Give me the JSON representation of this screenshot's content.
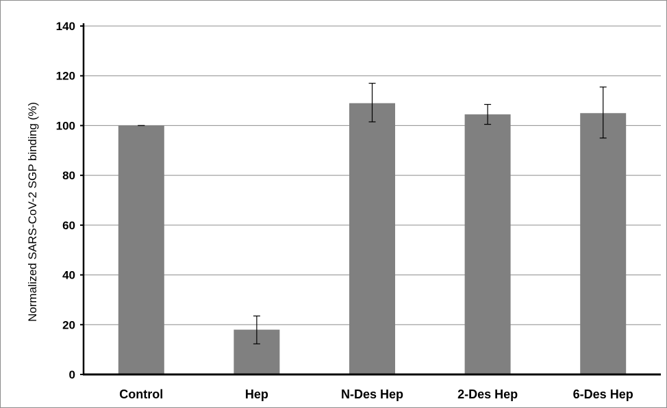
{
  "chart_data": {
    "type": "bar",
    "title": "",
    "xlabel": "",
    "ylabel": "Normalized SARS-CoV-2 SGP binding  (%)",
    "categories": [
      "Control",
      "Hep",
      "N-Des Hep",
      "2-Des Hep",
      "6-Des Hep"
    ],
    "values": [
      100,
      18,
      109,
      104.5,
      105
    ],
    "error_low": [
      100,
      12.3,
      101.5,
      100.5,
      95
    ],
    "error_high": [
      100,
      23.5,
      117,
      108.5,
      115.5
    ],
    "ylim": [
      0,
      140
    ],
    "yticks": [
      0,
      20,
      40,
      60,
      80,
      100,
      120,
      140
    ],
    "grid": true,
    "legend": "none",
    "bar_color": "#808080",
    "grid_color": "#8c8c8c"
  }
}
